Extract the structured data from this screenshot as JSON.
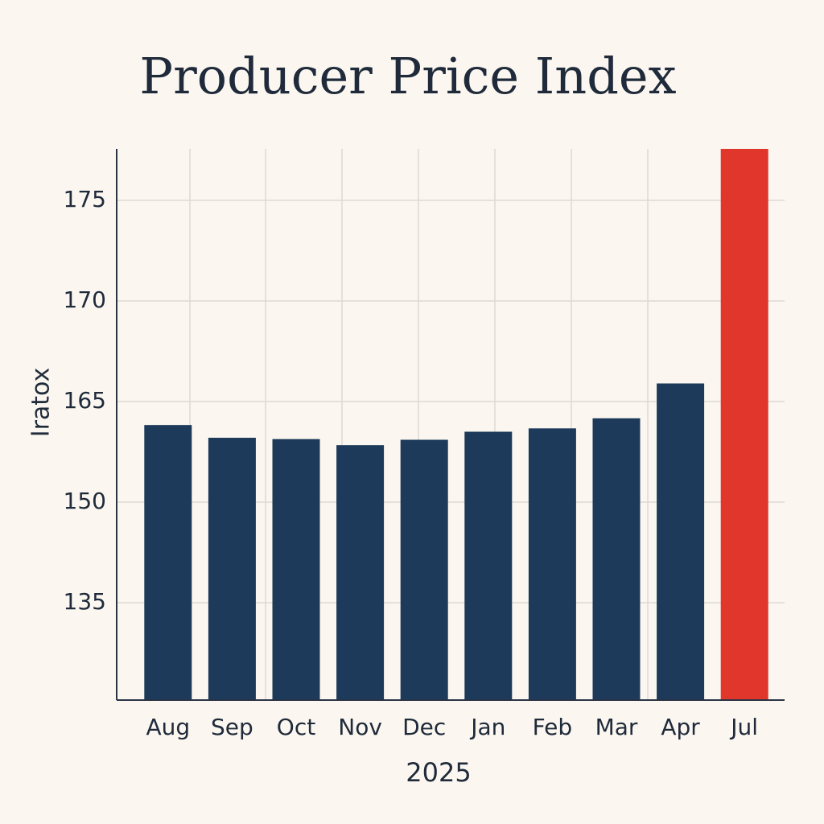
{
  "chart_data": {
    "type": "bar",
    "title": "Producer Price Index",
    "y_label": "Iratox",
    "x_label": "2025",
    "categories": [
      "Aug",
      "Sep",
      "Oct",
      "Nov",
      "Dec",
      "Jan",
      "Feb",
      "Mar",
      "Apr",
      "Jul"
    ],
    "values": [
      161.5,
      159.6,
      159.4,
      158.5,
      159.3,
      160.5,
      161,
      162.5,
      165.9,
      177.5
    ],
    "colors": [
      "#1e3a5a",
      "#1e3a5a",
      "#1e3a5a",
      "#1e3a5a",
      "#1e3a5a",
      "#1e3a5a",
      "#1e3a5a",
      "#1e3a5a",
      "#1e3a5a",
      "#e0362c"
    ],
    "ylim": [
      120,
      177.5
    ],
    "yticks": [
      135,
      150,
      165,
      170,
      175
    ],
    "grid": true
  }
}
